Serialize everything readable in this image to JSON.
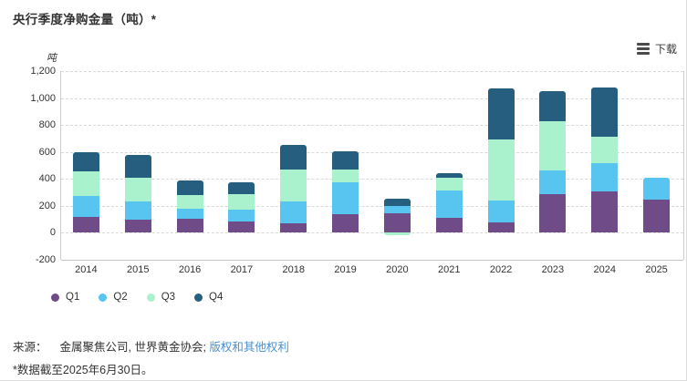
{
  "header": {
    "title": "央行季度净购金量（吨）*"
  },
  "toolbar": {
    "download_label": "下载"
  },
  "chart_data": {
    "type": "bar",
    "stacked": true,
    "title": "央行季度净购金量（吨）*",
    "unit_label": "吨",
    "categories": [
      "2014",
      "2015",
      "2016",
      "2017",
      "2018",
      "2019",
      "2020",
      "2021",
      "2022",
      "2023",
      "2024",
      "2025"
    ],
    "series": [
      {
        "name": "Q1",
        "color": "#6F4C88",
        "values": [
          115,
          100,
          105,
          85,
          70,
          140,
          145,
          110,
          80,
          285,
          305,
          245
        ]
      },
      {
        "name": "Q2",
        "color": "#58C5F1",
        "values": [
          160,
          135,
          75,
          90,
          165,
          235,
          55,
          205,
          160,
          175,
          215,
          165
        ]
      },
      {
        "name": "Q3",
        "color": "#AAF2CE",
        "values": [
          180,
          175,
          100,
          110,
          235,
          95,
          -15,
          95,
          450,
          370,
          195,
          null
        ]
      },
      {
        "name": "Q4",
        "color": "#265E80",
        "values": [
          145,
          165,
          110,
          90,
          185,
          135,
          55,
          35,
          380,
          220,
          365,
          null
        ]
      }
    ],
    "ylim": [
      -200,
      1200
    ],
    "ytick_step": 200,
    "grid": "horizontal dashed",
    "legend_position": "bottom-left"
  },
  "footer": {
    "source_label": "来源：",
    "source_text": "金属聚焦公司, 世界黄金协会;",
    "rights_link": "版权和其他权利",
    "footnote": "*数据截至2025年6月30日。"
  }
}
